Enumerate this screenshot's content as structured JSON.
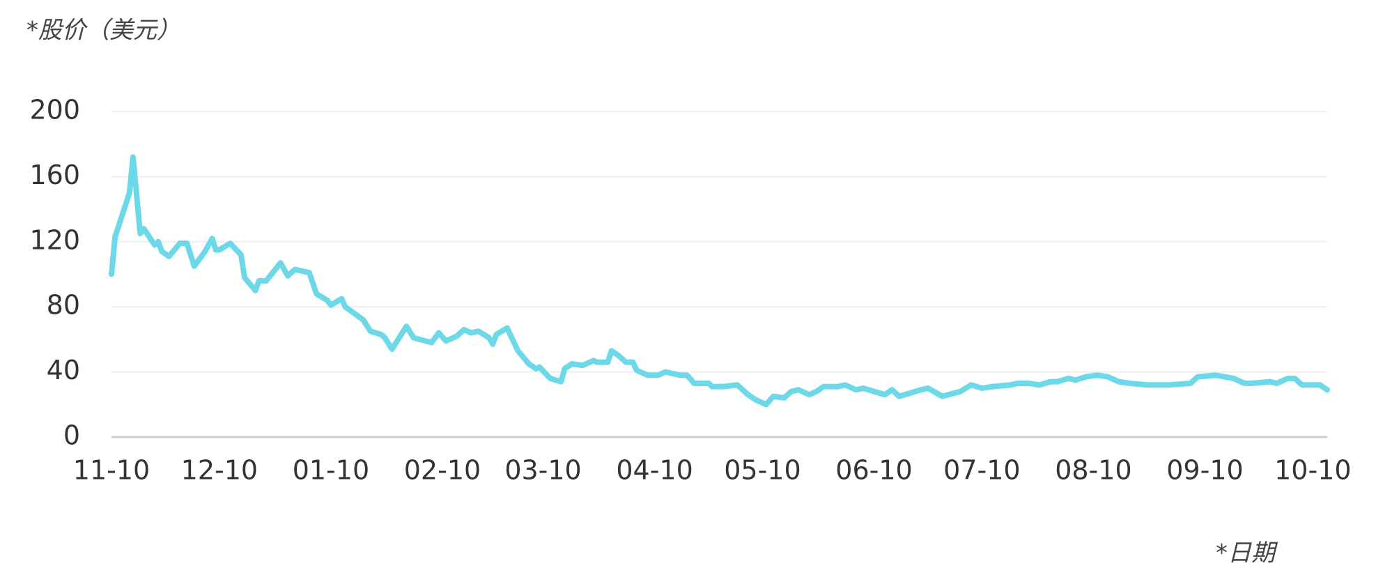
{
  "chart_data": {
    "type": "line",
    "title": "*股价（美元）",
    "x_label": "*日期",
    "x": [
      0,
      1,
      5,
      6,
      8,
      9,
      12,
      13,
      14,
      16,
      19,
      21,
      23,
      26,
      28,
      29,
      30,
      33,
      36,
      37,
      40,
      41,
      43,
      47,
      49,
      51,
      55,
      57,
      60,
      61,
      64,
      65,
      70,
      72,
      75,
      76,
      78,
      82,
      84,
      89,
      91,
      93,
      96,
      98,
      100,
      102,
      105,
      106,
      107,
      110,
      113,
      116,
      118,
      119,
      122,
      125,
      126,
      128,
      131,
      134,
      135,
      138,
      139,
      141,
      143,
      145,
      146,
      149,
      152,
      154,
      158,
      160,
      162,
      166,
      167,
      170,
      174,
      177,
      179,
      182,
      184,
      187,
      189,
      191,
      194,
      196,
      198,
      202,
      204,
      207,
      209,
      212,
      215,
      217,
      219,
      225,
      227,
      231,
      236,
      239,
      242,
      245,
      250,
      252,
      255,
      258,
      261,
      263,
      266,
      268,
      271,
      274,
      277,
      280,
      283,
      288,
      294,
      300,
      302,
      307,
      312,
      315,
      317,
      322,
      324,
      327,
      329,
      331,
      336,
      338
    ],
    "series": [
      {
        "name": "股价",
        "color": "#6dd9e8",
        "values": [
          100,
          123,
          150,
          172,
          125,
          128,
          118,
          120,
          114,
          111,
          119,
          119,
          105,
          114,
          122,
          115,
          115,
          119,
          112,
          98,
          90,
          96,
          96,
          107,
          99,
          103,
          101,
          88,
          84,
          81,
          85,
          80,
          72,
          65,
          63,
          61,
          54,
          68,
          61,
          58,
          64,
          59,
          62,
          66,
          64,
          65,
          61,
          57,
          63,
          67,
          53,
          45,
          42,
          43,
          36,
          34,
          42,
          45,
          44,
          47,
          46,
          46,
          53,
          50,
          46,
          46,
          41,
          38,
          38,
          40,
          38,
          38,
          33,
          33,
          31,
          31,
          32,
          26,
          23,
          20,
          25,
          24,
          28,
          29,
          26,
          28,
          31,
          31,
          32,
          29,
          30,
          28,
          26,
          29,
          25,
          29,
          30,
          25,
          28,
          32,
          30,
          31,
          32,
          33,
          33,
          32,
          34,
          34,
          36,
          35,
          37,
          38,
          37,
          34,
          33,
          32,
          32,
          33,
          37,
          38,
          36,
          33,
          33,
          34,
          33,
          36,
          36,
          32,
          32,
          29
        ]
      }
    ],
    "xlim": [
      0,
      338
    ],
    "xticks": [
      {
        "value": 0,
        "label": "11-10"
      },
      {
        "value": 30,
        "label": "12-10"
      },
      {
        "value": 61,
        "label": "01-10"
      },
      {
        "value": 92,
        "label": "02-10"
      },
      {
        "value": 120,
        "label": "03-10"
      },
      {
        "value": 151,
        "label": "04-10"
      },
      {
        "value": 181,
        "label": "05-10"
      },
      {
        "value": 212,
        "label": "06-10"
      },
      {
        "value": 242,
        "label": "07-10"
      },
      {
        "value": 273,
        "label": "08-10"
      },
      {
        "value": 304,
        "label": "09-10"
      },
      {
        "value": 334,
        "label": "10-10"
      }
    ],
    "ylim": [
      0,
      200
    ],
    "yticks": [
      0,
      40,
      80,
      120,
      160,
      200
    ],
    "grid": true
  }
}
